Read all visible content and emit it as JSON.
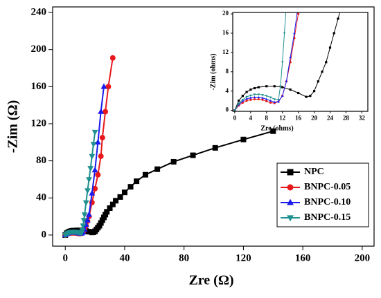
{
  "chart_data": {
    "type": "line",
    "xlabel": "Zre (Ω)",
    "ylabel": "-Zim (Ω)",
    "xlim": [
      -8.5,
      208
    ],
    "ylim": [
      -12,
      246
    ],
    "xticks": [
      0,
      40,
      80,
      120,
      160,
      200
    ],
    "yticks": [
      0,
      40,
      80,
      120,
      160,
      200,
      240
    ],
    "legend": "lower right",
    "series": [
      {
        "name": "NPC",
        "color": "#000000",
        "marker": "square",
        "x": [
          0,
          1,
          2,
          3,
          4,
          5,
          6,
          8,
          10,
          12,
          14,
          16,
          18,
          19,
          20,
          21,
          22,
          23,
          24,
          25,
          26,
          27,
          28,
          30,
          32,
          34,
          37,
          40,
          44,
          48,
          54,
          62,
          73,
          86,
          101,
          120,
          140
        ],
        "values": [
          0,
          2,
          3,
          3.8,
          4.3,
          4.6,
          4.8,
          5,
          5,
          4.8,
          4.3,
          3.6,
          2.8,
          3,
          4,
          6,
          8,
          10,
          13,
          16,
          19,
          22,
          25,
          29,
          33,
          37,
          41,
          46,
          52,
          58,
          65,
          71,
          79,
          86,
          94,
          103,
          112
        ]
      },
      {
        "name": "BNPC-0.05",
        "color": "#e8191c",
        "marker": "circle",
        "x": [
          0,
          1,
          2,
          3,
          4,
          5,
          6,
          7,
          8,
          9,
          10,
          11,
          12,
          13,
          14,
          15,
          16,
          18,
          20,
          22,
          24,
          25,
          27,
          29,
          32
        ],
        "values": [
          0,
          1,
          1.6,
          2,
          2.2,
          2.3,
          2.3,
          2.2,
          1.9,
          1.6,
          1.5,
          1.8,
          3,
          6,
          10,
          15,
          20,
          35,
          50,
          65,
          85,
          105,
          133,
          160,
          191
        ]
      },
      {
        "name": "BNPC-0.10",
        "color": "#1a1aee",
        "marker": "triangle-up",
        "x": [
          0,
          1,
          2,
          3,
          4,
          5,
          6,
          7,
          8,
          9,
          10,
          11,
          12,
          13,
          14,
          15,
          16,
          18,
          20,
          22,
          24,
          26
        ],
        "values": [
          0,
          1.2,
          1.9,
          2.4,
          2.6,
          2.7,
          2.7,
          2.6,
          2.3,
          2,
          1.7,
          1.8,
          3,
          6,
          11,
          16,
          22,
          45,
          70,
          100,
          133,
          160
        ]
      },
      {
        "name": "BNPC-0.15",
        "color": "#1f8f8f",
        "marker": "triangle-down",
        "x": [
          0,
          1,
          2,
          3,
          4,
          5,
          6,
          7,
          8,
          9,
          10,
          11,
          11.5,
          12,
          12.5,
          13,
          14,
          15,
          16,
          17,
          18,
          19,
          20
        ],
        "values": [
          0,
          1.4,
          2.2,
          2.8,
          3.1,
          3.3,
          3.3,
          3.2,
          3,
          2.7,
          2.3,
          2.2,
          5,
          10,
          16,
          22,
          35,
          48,
          60,
          72,
          85,
          98,
          111
        ]
      }
    ],
    "inset": {
      "xlabel": "Zre (ohms)",
      "ylabel": "-Zim (ohms)",
      "xlim": [
        -0.5,
        33.5
      ],
      "ylim": [
        -0.2,
        20.3
      ],
      "xticks": [
        0,
        4,
        8,
        12,
        16,
        20,
        24,
        28,
        32
      ],
      "yticks": [
        0,
        4,
        8,
        12,
        16,
        20
      ]
    }
  }
}
